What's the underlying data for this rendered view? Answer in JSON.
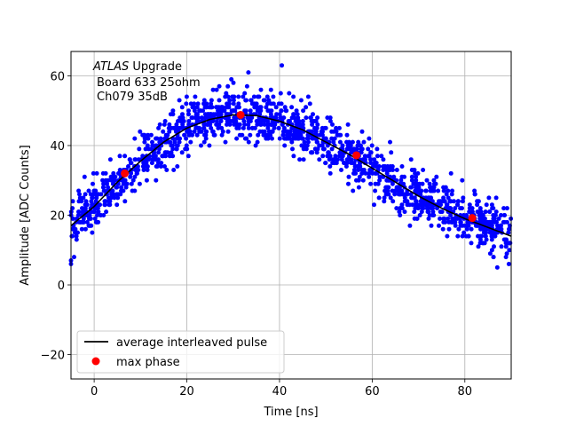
{
  "chart_data": {
    "type": "scatter",
    "xlabel": "Time [ns]",
    "ylabel": "Amplitude [ADC Counts]",
    "xlim": [
      -5,
      90
    ],
    "ylim": [
      -27,
      67
    ],
    "xticks": [
      0,
      20,
      40,
      60,
      80
    ],
    "yticks": [
      -20,
      0,
      20,
      40,
      60
    ],
    "grid": true,
    "legend_position": "lower-left",
    "annotation": {
      "italic_part": "ATLAS",
      "line1_rest": " Upgrade",
      "line2": "Board 633 25ohm",
      "line3": "Ch079 35dB"
    },
    "scatter_color": "#0000ff",
    "scatter_density_note": "dense cloud of samples scattered roughly ±6 ADC counts around the average pulse",
    "scatter_outliers": [
      {
        "x": 40.5,
        "y": 63
      },
      {
        "x": -5,
        "y": 7
      },
      {
        "x": -5,
        "y": 6
      },
      {
        "x": 87,
        "y": 5
      },
      {
        "x": 89.5,
        "y": 6
      },
      {
        "x": 27,
        "y": 57
      },
      {
        "x": 33,
        "y": 57
      }
    ],
    "average_pulse": {
      "name": "average interleaved pulse",
      "color": "#000000",
      "x": [
        -5,
        0,
        5,
        10,
        15,
        20,
        25,
        30,
        35,
        40,
        45,
        50,
        55,
        60,
        65,
        70,
        75,
        80,
        85,
        90
      ],
      "y": [
        17,
        22.5,
        29.5,
        35.5,
        41,
        45,
        47.5,
        48.8,
        48.6,
        47,
        44.5,
        41,
        37.5,
        33.5,
        29.5,
        25.5,
        22,
        19,
        16.5,
        14
      ]
    },
    "max_phase": {
      "name": "max phase",
      "color": "#ff0000",
      "x": [
        6.6,
        31.6,
        56.6,
        81.6
      ],
      "y": [
        32,
        48.8,
        37.2,
        19.2
      ]
    }
  }
}
